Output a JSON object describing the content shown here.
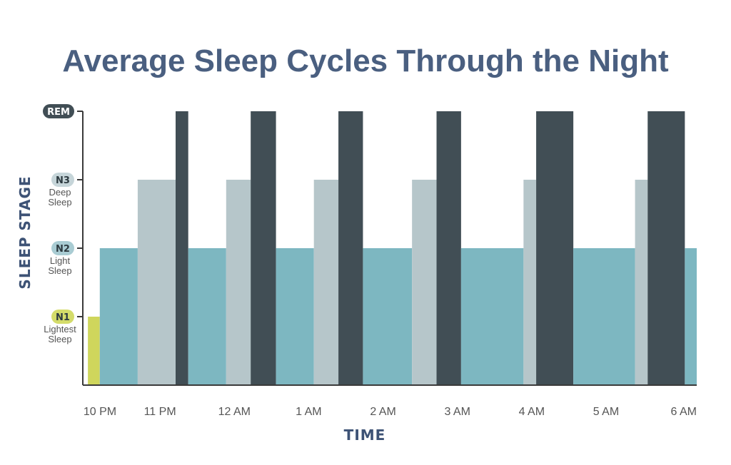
{
  "colors": {
    "title": "#4a5f80",
    "axis_title": "#3d5275",
    "N1": "#cfd65c",
    "N2": "#7db7c1",
    "N3": "#b6c6ca",
    "REM": "#414e55",
    "n1_badge": "#d4dc6a",
    "n2_badge": "#a9ccd3",
    "n3_badge": "#c6d5d9",
    "rem_badge": "#414e55",
    "axis": "#3a3a3a",
    "label": "#555555"
  },
  "chart_data": {
    "type": "bar",
    "title": "Average Sleep Cycles Through the Night",
    "xlabel": "TIME",
    "ylabel": "SLEEP STAGE",
    "x_ticks": [
      "10 PM",
      "11 PM",
      "12 AM",
      "1 AM",
      "2 AM",
      "3 AM",
      "4 AM",
      "5 AM",
      "6 AM"
    ],
    "y_levels": [
      {
        "key": "N1",
        "badge": "N1",
        "desc": [
          "Lightest",
          "Sleep"
        ],
        "level": 1
      },
      {
        "key": "N2",
        "badge": "N2",
        "desc": [
          "Light",
          "Sleep"
        ],
        "level": 2
      },
      {
        "key": "N3",
        "badge": "N3",
        "desc": [
          "Deep",
          "Sleep"
        ],
        "level": 3
      },
      {
        "key": "REM",
        "badge": "REM",
        "desc": [],
        "level": 4
      }
    ],
    "x_unit": "hours since 10 PM",
    "segments": [
      {
        "stage": "N1",
        "start": 0.03,
        "end": 0.19
      },
      {
        "stage": "N2",
        "start": 0.19,
        "end": 0.7
      },
      {
        "stage": "N3",
        "start": 0.7,
        "end": 1.21
      },
      {
        "stage": "REM",
        "start": 1.21,
        "end": 1.38
      },
      {
        "stage": "N2",
        "start": 1.38,
        "end": 1.89
      },
      {
        "stage": "N3",
        "start": 1.89,
        "end": 2.22
      },
      {
        "stage": "REM",
        "start": 2.22,
        "end": 2.56
      },
      {
        "stage": "N2",
        "start": 2.56,
        "end": 3.07
      },
      {
        "stage": "N3",
        "start": 3.07,
        "end": 3.4
      },
      {
        "stage": "REM",
        "start": 3.4,
        "end": 3.73
      },
      {
        "stage": "N2",
        "start": 3.73,
        "end": 4.39
      },
      {
        "stage": "N3",
        "start": 4.39,
        "end": 4.72
      },
      {
        "stage": "REM",
        "start": 4.72,
        "end": 5.05
      },
      {
        "stage": "N2",
        "start": 5.05,
        "end": 5.89
      },
      {
        "stage": "N3",
        "start": 5.89,
        "end": 6.06
      },
      {
        "stage": "REM",
        "start": 6.06,
        "end": 6.56
      },
      {
        "stage": "N2",
        "start": 6.56,
        "end": 7.39
      },
      {
        "stage": "N3",
        "start": 7.39,
        "end": 7.56
      },
      {
        "stage": "REM",
        "start": 7.56,
        "end": 8.06
      },
      {
        "stage": "N2",
        "start": 8.06,
        "end": 8.22
      }
    ],
    "xlim": [
      0,
      8.22
    ],
    "ylim": [
      0,
      4
    ],
    "grid": false,
    "legend": "none"
  }
}
